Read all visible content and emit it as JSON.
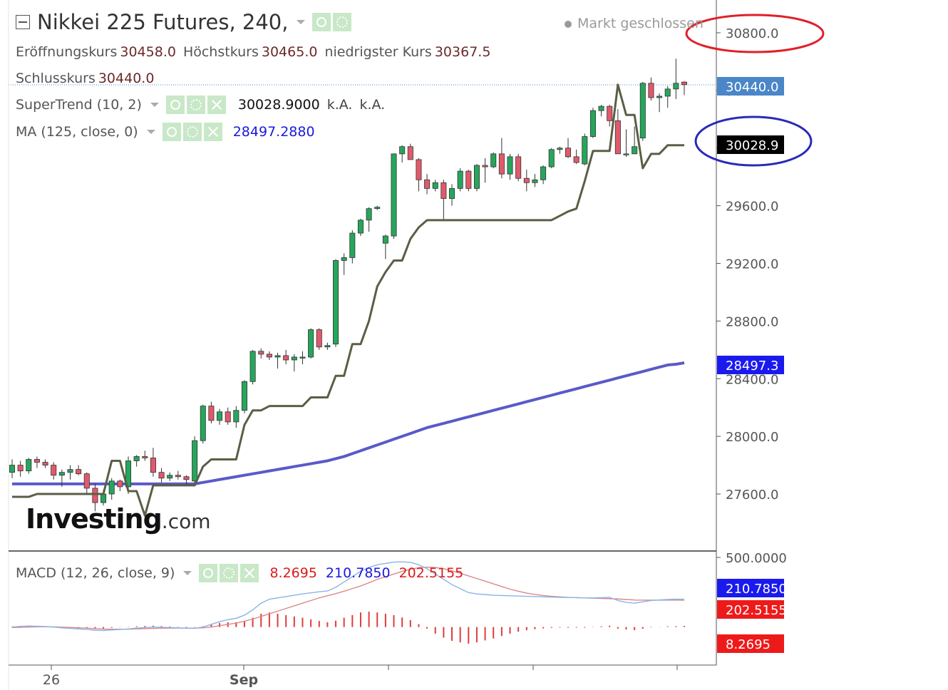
{
  "header": {
    "title": "Nikkei 225 Futures, 240,",
    "market_status": "Markt geschlossen",
    "open_label": "Eröffnungskurs",
    "open_value": "30458.0",
    "high_label": "Höchstkurs",
    "high_value": "30465.0",
    "low_label": "niedrigster Kurs",
    "low_value": "30367.5",
    "close_label": "Schlusskurs",
    "close_value": "30440.0"
  },
  "indicators": {
    "supertrend": {
      "label": "SuperTrend (10, 2)",
      "value": "30028.9000",
      "extra1": "k.A.",
      "extra2": "k.A."
    },
    "ma": {
      "label": "MA (125, close, 0)",
      "value": "28497.2880"
    },
    "macd": {
      "label": "MACD (12, 26, close, 9)",
      "hist": "8.2695",
      "macd": "210.7850",
      "signal": "202.5155"
    }
  },
  "watermark": {
    "main": "Investing",
    "suffix": ".com"
  },
  "colors": {
    "up": "#26a65b",
    "down": "#e05a6b",
    "supertrend": "#5a5e45",
    "ma": "#5a5ac8",
    "macd_line": "#8ab4e8",
    "signal_line": "#d98a8a",
    "hist": "#e03c3c",
    "last_price": "#4a86c8",
    "supertrend_badge": "#000000",
    "ma_badge": "#1a1aee",
    "macd_badge": "#1a1aee",
    "signal_badge": "#ee1a1a",
    "hist_badge": "#ee1a1a",
    "red_circle": "#e0202a",
    "blue_circle": "#2a2ab8"
  },
  "chart_data": {
    "type": "candlestick",
    "y_ticks": [
      27600,
      28000,
      28400,
      28800,
      29200,
      29600,
      30000,
      30400,
      30800
    ],
    "y_tick_labels": [
      "27600.0",
      "28000.0",
      "28400.0",
      "28800.0",
      "29200.0",
      "29600.0",
      "30000.0",
      "30400.0",
      "30800.0"
    ],
    "ylim": [
      27400,
      30900
    ],
    "x_labels": [
      "26",
      "Sep"
    ],
    "last_price": "30440.0",
    "supertrend_badge": "30028.9",
    "ma_badge": "28497.3",
    "candles": [
      [
        27750,
        27840,
        27710,
        27800
      ],
      [
        27800,
        27830,
        27720,
        27760
      ],
      [
        27760,
        27850,
        27740,
        27840
      ],
      [
        27840,
        27860,
        27780,
        27820
      ],
      [
        27820,
        27840,
        27780,
        27800
      ],
      [
        27800,
        27820,
        27700,
        27730
      ],
      [
        27730,
        27770,
        27650,
        27750
      ],
      [
        27750,
        27800,
        27700,
        27770
      ],
      [
        27770,
        27800,
        27730,
        27740
      ],
      [
        27740,
        27750,
        27600,
        27640
      ],
      [
        27640,
        27670,
        27480,
        27540
      ],
      [
        27540,
        27630,
        27520,
        27600
      ],
      [
        27600,
        27710,
        27560,
        27690
      ],
      [
        27690,
        27700,
        27620,
        27650
      ],
      [
        27650,
        27860,
        27600,
        27830
      ],
      [
        27830,
        27870,
        27790,
        27860
      ],
      [
        27860,
        27900,
        27830,
        27850
      ],
      [
        27850,
        27920,
        27720,
        27750
      ],
      [
        27750,
        27780,
        27680,
        27710
      ],
      [
        27710,
        27750,
        27690,
        27730
      ],
      [
        27730,
        27760,
        27700,
        27720
      ],
      [
        27720,
        27730,
        27660,
        27700
      ],
      [
        27690,
        28000,
        27670,
        27970
      ],
      [
        27970,
        28220,
        27950,
        28210
      ],
      [
        28210,
        28240,
        28090,
        28110
      ],
      [
        28110,
        28190,
        28080,
        28170
      ],
      [
        28170,
        28200,
        28080,
        28100
      ],
      [
        28100,
        28210,
        28060,
        28180
      ],
      [
        28180,
        28390,
        28160,
        28380
      ],
      [
        28380,
        28600,
        28360,
        28590
      ],
      [
        28590,
        28610,
        28540,
        28570
      ],
      [
        28570,
        28590,
        28530,
        28550
      ],
      [
        28550,
        28580,
        28470,
        28560
      ],
      [
        28560,
        28600,
        28500,
        28530
      ],
      [
        28530,
        28570,
        28450,
        28550
      ],
      [
        28550,
        28590,
        28500,
        28550
      ],
      [
        28550,
        28750,
        28540,
        28740
      ],
      [
        28740,
        28750,
        28600,
        28620
      ],
      [
        28620,
        28650,
        28600,
        28630
      ],
      [
        28640,
        29230,
        28620,
        29220
      ],
      [
        29220,
        29270,
        29120,
        29240
      ],
      [
        29240,
        29430,
        29200,
        29410
      ],
      [
        29410,
        29510,
        29390,
        29500
      ],
      [
        29500,
        29590,
        29420,
        29580
      ],
      [
        29580,
        29600,
        29570,
        29590
      ],
      [
        29340,
        29400,
        29230,
        29390
      ],
      [
        29390,
        29960,
        29370,
        29960
      ],
      [
        29960,
        30020,
        29900,
        30010
      ],
      [
        30010,
        30030,
        29920,
        29920
      ],
      [
        29920,
        29930,
        29700,
        29780
      ],
      [
        29780,
        29820,
        29680,
        29720
      ],
      [
        29720,
        29780,
        29700,
        29760
      ],
      [
        29760,
        29780,
        29500,
        29650
      ],
      [
        29650,
        29750,
        29600,
        29720
      ],
      [
        29720,
        29860,
        29700,
        29840
      ],
      [
        29840,
        29850,
        29700,
        29720
      ],
      [
        29720,
        29890,
        29700,
        29880
      ],
      [
        29880,
        29930,
        29760,
        29870
      ],
      [
        29870,
        29970,
        29860,
        29960
      ],
      [
        29960,
        30070,
        29790,
        29820
      ],
      [
        29820,
        29960,
        29780,
        29940
      ],
      [
        29940,
        29960,
        29770,
        29790
      ],
      [
        29790,
        29850,
        29700,
        29760
      ],
      [
        29760,
        29820,
        29730,
        29780
      ],
      [
        29780,
        29880,
        29750,
        29870
      ],
      [
        29870,
        30000,
        29860,
        29990
      ],
      [
        29990,
        30010,
        29960,
        30000
      ],
      [
        30000,
        30070,
        29930,
        29940
      ],
      [
        29940,
        29990,
        29890,
        29900
      ],
      [
        29890,
        30100,
        29880,
        30080
      ],
      [
        30080,
        30280,
        30070,
        30260
      ],
      [
        30260,
        30300,
        30220,
        30290
      ],
      [
        30290,
        30300,
        30150,
        30190
      ],
      [
        30190,
        30270,
        29960,
        29960
      ],
      [
        29960,
        30130,
        29940,
        29960
      ],
      [
        29960,
        30150,
        29980,
        30010
      ],
      [
        30070,
        30460,
        30050,
        30450
      ],
      [
        30450,
        30490,
        30330,
        30350
      ],
      [
        30350,
        30380,
        30250,
        30360
      ],
      [
        30360,
        30430,
        30280,
        30410
      ],
      [
        30410,
        30620,
        30340,
        30450
      ],
      [
        30458,
        30465,
        30367.5,
        30440
      ]
    ],
    "supertrend": [
      27580,
      27580,
      27580,
      27600,
      27600,
      27600,
      27600,
      27600,
      27600,
      27600,
      27600,
      27600,
      27830,
      27830,
      27620,
      27620,
      27450,
      27660,
      27660,
      27660,
      27660,
      27660,
      27660,
      27790,
      27840,
      27840,
      27840,
      27840,
      28080,
      28180,
      28180,
      28210,
      28210,
      28210,
      28210,
      28210,
      28270,
      28270,
      28270,
      28420,
      28420,
      28640,
      28640,
      28800,
      29040,
      29140,
      29220,
      29220,
      29370,
      29450,
      29500,
      29500,
      29500,
      29500,
      29500,
      29500,
      29500,
      29500,
      29500,
      29500,
      29500,
      29500,
      29500,
      29500,
      29500,
      29500,
      29530,
      29560,
      29580,
      29770,
      29980,
      29980,
      29980,
      30440,
      30230,
      30230,
      29860,
      29960,
      29960,
      30020,
      30020,
      30020
    ],
    "ma": [
      27670,
      27670,
      27670,
      27670,
      27670,
      27670,
      27670,
      27670,
      27670,
      27670,
      27670,
      27670,
      27670,
      27670,
      27670,
      27670,
      27670,
      27670,
      27670,
      27670,
      27670,
      27670,
      27670,
      27680,
      27690,
      27700,
      27710,
      27720,
      27730,
      27740,
      27750,
      27760,
      27770,
      27780,
      27790,
      27800,
      27810,
      27820,
      27830,
      27845,
      27860,
      27880,
      27900,
      27920,
      27940,
      27960,
      27980,
      28000,
      28020,
      28040,
      28060,
      28075,
      28090,
      28105,
      28120,
      28135,
      28150,
      28165,
      28180,
      28195,
      28210,
      28225,
      28240,
      28255,
      28270,
      28285,
      28300,
      28315,
      28330,
      28345,
      28360,
      28375,
      28390,
      28405,
      28420,
      28435,
      28450,
      28465,
      28480,
      28495,
      28500,
      28510
    ],
    "macd_panel": {
      "y_tick_top": "500.0000",
      "macd_badge": "210.7850",
      "signal_badge": "202.5155",
      "hist_badge": "8.2695",
      "ylim": [
        -260,
        520
      ],
      "macd": [
        0,
        5,
        8,
        6,
        4,
        0,
        -6,
        -10,
        -14,
        -18,
        -24,
        -26,
        -22,
        -18,
        -14,
        -8,
        -4,
        0,
        -2,
        -4,
        -6,
        -8,
        -10,
        0,
        20,
        40,
        56,
        66,
        90,
        130,
        180,
        210,
        220,
        230,
        240,
        250,
        258,
        266,
        272,
        300,
        340,
        380,
        420,
        450,
        470,
        480,
        490,
        492,
        488,
        470,
        440,
        400,
        360,
        320,
        290,
        260,
        250,
        245,
        240,
        238,
        236,
        234,
        232,
        230,
        228,
        226,
        224,
        224,
        222,
        220,
        220,
        222,
        224,
        200,
        186,
        180,
        190,
        200,
        204,
        208,
        210,
        210
      ],
      "signal": [
        -4,
        -2,
        0,
        2,
        2,
        1,
        -1,
        -3,
        -6,
        -8,
        -12,
        -15,
        -16,
        -16,
        -16,
        -14,
        -12,
        -10,
        -9,
        -8,
        -8,
        -8,
        -8,
        -6,
        0,
        10,
        20,
        30,
        44,
        60,
        80,
        100,
        120,
        140,
        160,
        180,
        200,
        220,
        236,
        252,
        270,
        290,
        310,
        334,
        360,
        380,
        400,
        420,
        436,
        448,
        452,
        450,
        440,
        424,
        406,
        386,
        366,
        346,
        326,
        306,
        286,
        270,
        256,
        246,
        238,
        232,
        228,
        224,
        222,
        220,
        218,
        216,
        214,
        212,
        208,
        204,
        203,
        203,
        203,
        203,
        203,
        202.5
      ],
      "hist": [
        4,
        7,
        8,
        4,
        2,
        -1,
        -5,
        -7,
        -8,
        -10,
        -12,
        -11,
        -6,
        -2,
        2,
        6,
        8,
        10,
        7,
        4,
        2,
        0,
        -2,
        6,
        20,
        30,
        36,
        36,
        46,
        70,
        100,
        110,
        100,
        90,
        80,
        70,
        58,
        46,
        36,
        48,
        70,
        90,
        110,
        116,
        110,
        100,
        90,
        72,
        52,
        22,
        -12,
        -50,
        -80,
        -104,
        -116,
        -126,
        -116,
        -101,
        -86,
        -68,
        -50,
        -36,
        -24,
        -16,
        -10,
        -6,
        -4,
        0,
        0,
        0,
        2,
        6,
        10,
        -12,
        -18,
        -23,
        -13,
        -3,
        1,
        5,
        7,
        8.27
      ]
    }
  }
}
